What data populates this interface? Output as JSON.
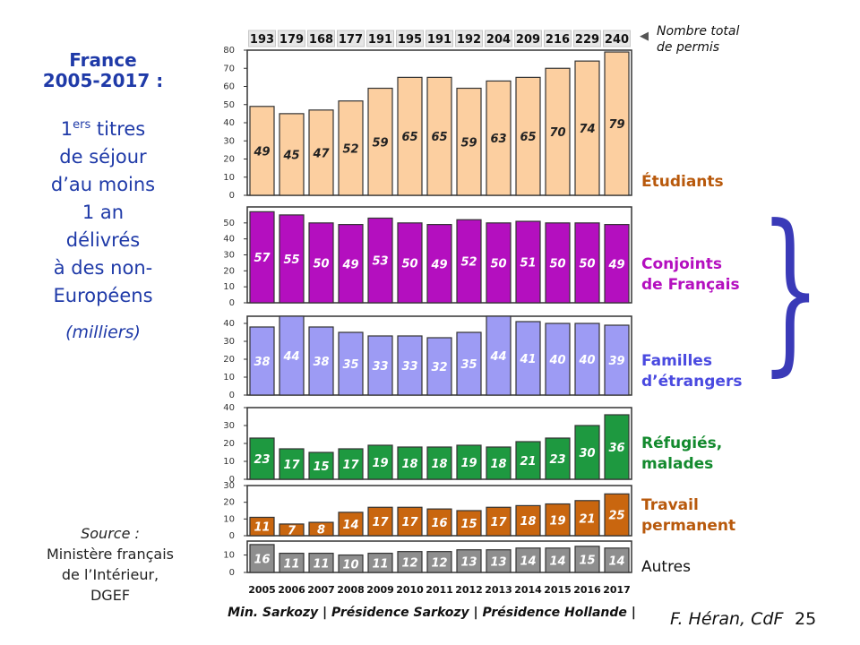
{
  "left_panel": {
    "title_line1": "France",
    "title_line2": "2005-2017 :",
    "subtitle_prefix": "1",
    "subtitle_sup": "ers",
    "subtitle_word": " titres",
    "subtitle_lines": [
      "de séjour",
      "d’au moins",
      "1 an",
      "délivrés",
      "à des non-",
      "Européens"
    ],
    "units": "(milliers)"
  },
  "source": {
    "label": "Source :",
    "lines": [
      "Ministère français",
      "de l’Intérieur,",
      "DGEF"
    ]
  },
  "total_note": {
    "arrow": "◀",
    "line1": "Nombre total",
    "line2": "de permis"
  },
  "footer": {
    "administrations": "Min. Sarkozy | Présidence Sarkozy | Présidence Hollande |",
    "author": "F. Héran, CdF",
    "page": "25"
  },
  "colors": {
    "etudiants": "#fccfa0",
    "conjoints": "#b40fbf",
    "familles": "#9d9bf4",
    "refugies": "#1e9940",
    "travail": "#c9660f",
    "autres": "#8e8e8e",
    "brace": "#3a3ab8"
  },
  "chart_data": {
    "type": "bar",
    "categories": [
      "2005",
      "2006",
      "2007",
      "2008",
      "2009",
      "2010",
      "2011",
      "2012",
      "2013",
      "2014",
      "2015",
      "2016",
      "2017"
    ],
    "totals": [
      193,
      179,
      168,
      177,
      191,
      195,
      191,
      192,
      204,
      209,
      216,
      229,
      240
    ],
    "panels": [
      {
        "name": "Étudiants",
        "label_lines": [
          "Étudiants"
        ],
        "ylim": [
          0,
          80
        ],
        "yticks": [
          0,
          10,
          20,
          30,
          40,
          50,
          60,
          70,
          80
        ],
        "values": [
          49,
          45,
          47,
          52,
          59,
          65,
          65,
          59,
          63,
          65,
          70,
          74,
          79
        ],
        "color": "#fccfa0",
        "label_color": "#b8590c",
        "value_color": "#222222"
      },
      {
        "name": "Conjoints de Français",
        "label_lines": [
          "Conjoints",
          "de Français"
        ],
        "ylim": [
          0,
          60
        ],
        "yticks": [
          0,
          10,
          20,
          30,
          40,
          50
        ],
        "values": [
          57,
          55,
          50,
          49,
          53,
          50,
          49,
          52,
          50,
          51,
          50,
          50,
          49
        ],
        "color": "#b40fbf",
        "label_color": "#b40fbf",
        "value_color": "#ffffff"
      },
      {
        "name": "Familles d’étrangers",
        "label_lines": [
          "Familles",
          "d’étrangers"
        ],
        "ylim": [
          0,
          44
        ],
        "yticks": [
          0,
          10,
          20,
          30,
          40
        ],
        "values": [
          38,
          44,
          38,
          35,
          33,
          33,
          32,
          35,
          44,
          41,
          40,
          40,
          39
        ],
        "color": "#9d9bf4",
        "label_color": "#4a4ae0",
        "value_color": "#ffffff"
      },
      {
        "name": "Réfugiés, malades",
        "label_lines": [
          "Réfugiés,",
          "malades"
        ],
        "ylim": [
          0,
          40
        ],
        "yticks": [
          0,
          10,
          20,
          30,
          40
        ],
        "values": [
          23,
          17,
          15,
          17,
          19,
          18,
          18,
          19,
          18,
          21,
          23,
          30,
          36
        ],
        "color": "#1e9940",
        "label_color": "#138a2e",
        "value_color": "#ffffff"
      },
      {
        "name": "Travail permanent",
        "label_lines": [
          "Travail",
          "permanent"
        ],
        "ylim": [
          0,
          30
        ],
        "yticks": [
          0,
          10,
          20,
          30
        ],
        "values": [
          11,
          7,
          8,
          14,
          17,
          17,
          16,
          15,
          17,
          18,
          19,
          21,
          25
        ],
        "color": "#c9660f",
        "label_color": "#b8590c",
        "value_color": "#ffffff"
      },
      {
        "name": "Autres",
        "label_lines": [
          "Autres"
        ],
        "ylim": [
          0,
          18
        ],
        "yticks": [
          0,
          10
        ],
        "values": [
          16,
          11,
          11,
          10,
          11,
          12,
          12,
          13,
          13,
          14,
          14,
          15,
          14
        ],
        "color": "#8e8e8e",
        "label_color": "#111111",
        "value_color": "#ffffff"
      }
    ]
  }
}
